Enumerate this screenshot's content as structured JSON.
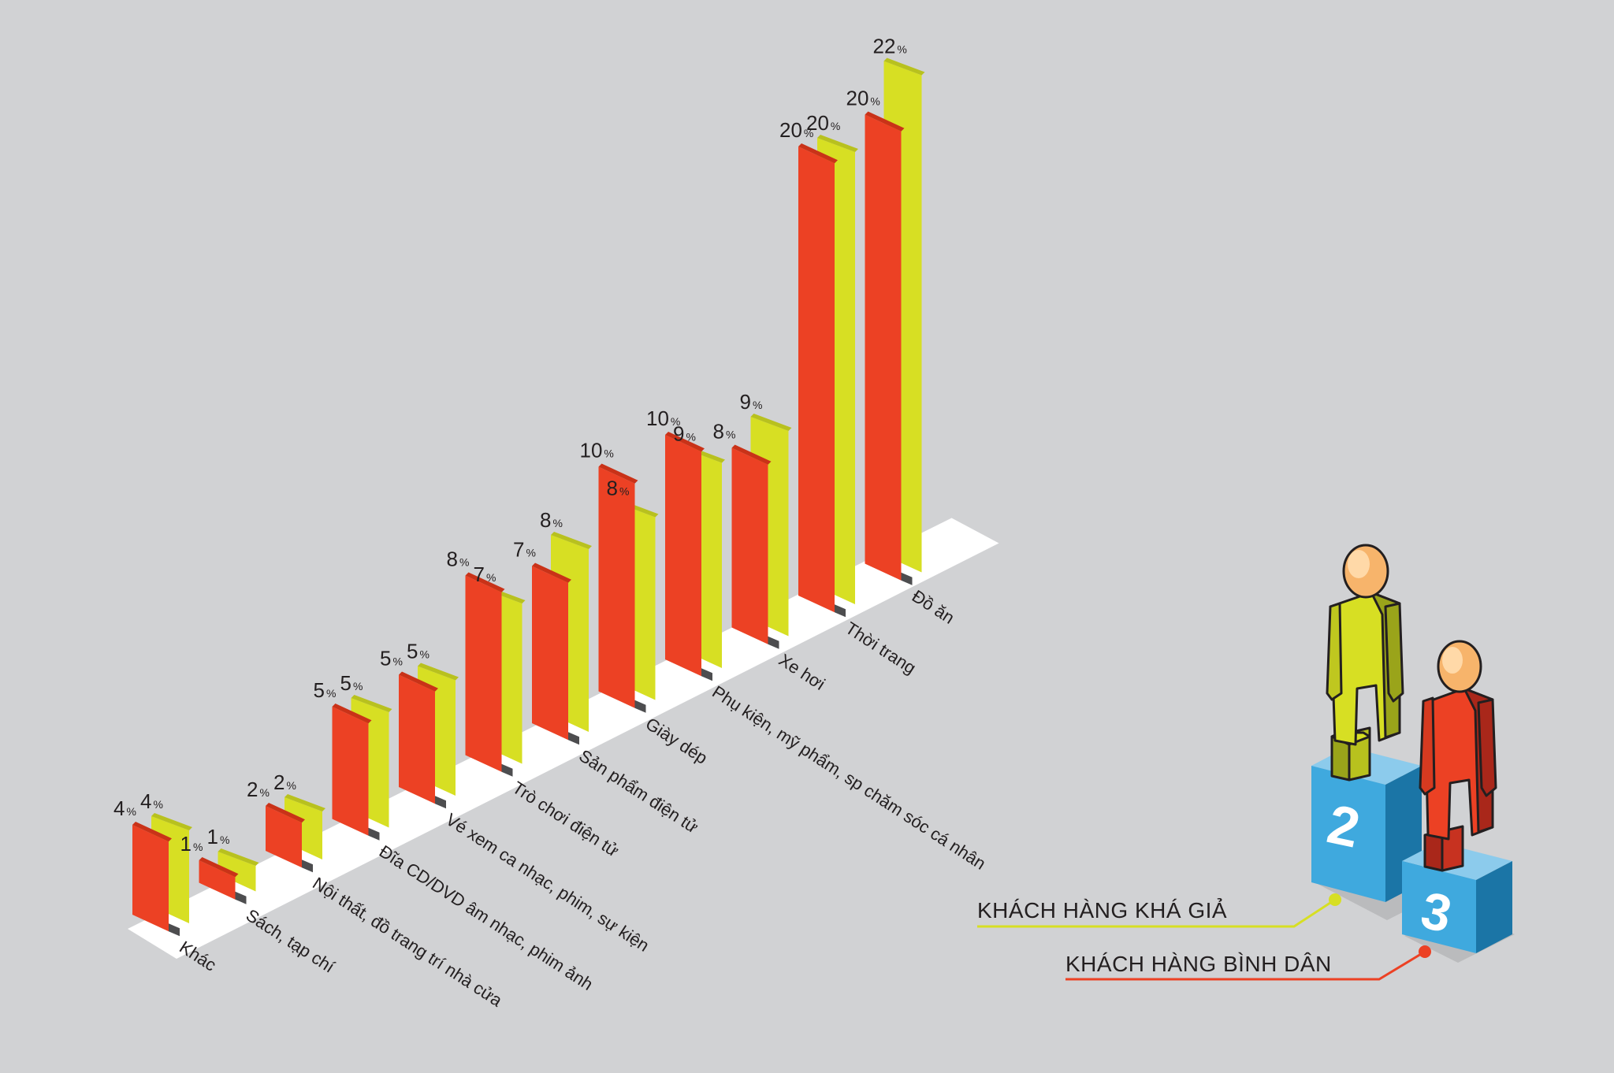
{
  "colors": {
    "background": "#d1d2d4",
    "red": "#ec4124",
    "yellow": "#d7df23",
    "text": "#231f20",
    "blue_front": "#3fa9de",
    "blue_side": "#1b75a6"
  },
  "legend": {
    "affluent_label": "KHÁCH HÀNG KHÁ GIẢ",
    "average_label": "KHÁCH HÀNG BÌNH DÂN",
    "podium_rank_2": "2",
    "podium_rank_3": "3"
  },
  "chart_data": {
    "type": "bar",
    "unit": "%",
    "categories": [
      "Khác",
      "Sách, tạp chí",
      "Nội thất, đồ trang trí nhà cửa",
      "Đĩa CD/DVD âm nhạc, phim ảnh",
      "Vé xem ca nhạc, phim, sự kiện",
      "Trò chơi điện tử",
      "Sản phẩm điện tử",
      "Giày dép",
      "Phụ kiện, mỹ phẩm, sp chăm sóc cá nhân",
      "Xe hơi",
      "Thời trang",
      "Đồ ăn"
    ],
    "series": [
      {
        "name": "KHÁCH HÀNG BÌNH DÂN",
        "color": "#ec4124",
        "values": [
          4,
          1,
          2,
          5,
          5,
          8,
          7,
          10,
          10,
          8,
          20,
          20
        ]
      },
      {
        "name": "KHÁCH HÀNG KHÁ GIẢ",
        "color": "#d7df23",
        "values": [
          4,
          1,
          2,
          5,
          5,
          7,
          8,
          8,
          9,
          9,
          20,
          22
        ]
      }
    ],
    "ylim": [
      0,
      22
    ],
    "grid": false,
    "legend_position": "bottom-right"
  }
}
